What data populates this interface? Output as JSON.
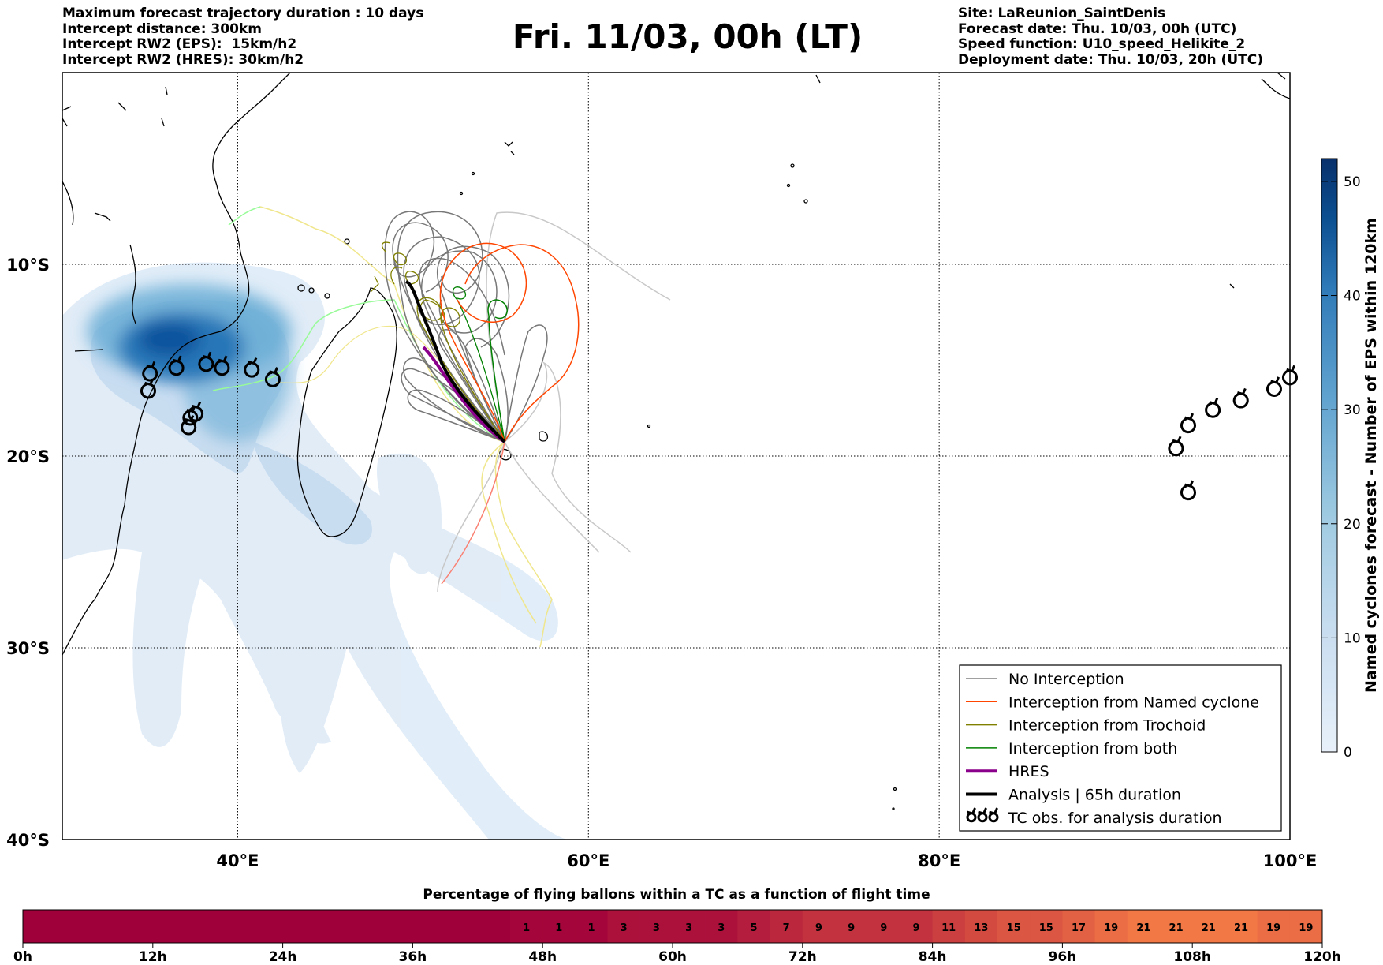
{
  "header_left": [
    "Maximum forecast trajectory duration : 10 days",
    "Intercept distance: 300km",
    "Intercept RW2 (EPS):  15km/h2",
    "Intercept RW2 (HRES): 30km/h2"
  ],
  "header_right": [
    "Site: LaReunion_SaintDenis",
    "Forecast date: Thu. 10/03, 00h (UTC)",
    "Speed function: U10_speed_Helikite_2",
    "Deployment date: Thu. 10/03, 20h (UTC)"
  ],
  "title": "Fri. 11/03, 00h (LT)",
  "map": {
    "lon_range": [
      30,
      100
    ],
    "lat_range": [
      -40,
      0
    ],
    "lon_ticks": [
      {
        "v": 40,
        "label": "40°E"
      },
      {
        "v": 60,
        "label": "60°E"
      },
      {
        "v": 80,
        "label": "80°E"
      },
      {
        "v": 100,
        "label": "100°E"
      }
    ],
    "lat_ticks": [
      {
        "v": -10,
        "label": "10°S"
      },
      {
        "v": -20,
        "label": "20°S"
      },
      {
        "v": -30,
        "label": "30°S"
      },
      {
        "v": -40,
        "label": "40°S"
      }
    ],
    "grid": "dotted"
  },
  "colorbar": {
    "label": "Named cyclones forecast - Number of EPS within 120km",
    "ticks": [
      0,
      10,
      20,
      30,
      40,
      50
    ],
    "max": 52,
    "colors": [
      "#e8f1fa",
      "#c9ddf0",
      "#9ecae1",
      "#5fa2cf",
      "#2f7ab8",
      "#0b4f91",
      "#08306b"
    ]
  },
  "legend": [
    {
      "label": "No Interception",
      "color": "#808080",
      "width": 1.5,
      "kind": "line"
    },
    {
      "label": "Interception from Named cyclone",
      "color": "#ff4500",
      "width": 1.5,
      "kind": "line"
    },
    {
      "label": "Interception from Trochoid",
      "color": "#808000",
      "width": 1.5,
      "kind": "line"
    },
    {
      "label": "Interception from both",
      "color": "#008000",
      "width": 1.5,
      "kind": "line"
    },
    {
      "label": "HRES",
      "color": "#8b008b",
      "width": 4,
      "kind": "line"
    },
    {
      "label": "Analysis | 65h duration",
      "color": "#000000",
      "width": 4,
      "kind": "line"
    },
    {
      "label": "TC obs. for analysis duration",
      "color": "#000000",
      "width": 2,
      "kind": "tc"
    }
  ],
  "tc_obs": [
    {
      "lon": 35.0,
      "lat": -15.7
    },
    {
      "lon": 36.5,
      "lat": -15.4
    },
    {
      "lon": 38.2,
      "lat": -15.2
    },
    {
      "lon": 39.1,
      "lat": -15.4
    },
    {
      "lon": 40.8,
      "lat": -15.5
    },
    {
      "lon": 42.0,
      "lat": -16.0
    },
    {
      "lon": 34.9,
      "lat": -16.6
    },
    {
      "lon": 37.6,
      "lat": -17.8
    },
    {
      "lon": 37.3,
      "lat": -18.0
    },
    {
      "lon": 37.2,
      "lat": -18.5
    },
    {
      "lon": 93.5,
      "lat": -19.6
    },
    {
      "lon": 94.2,
      "lat": -18.4
    },
    {
      "lon": 95.6,
      "lat": -17.6
    },
    {
      "lon": 97.2,
      "lat": -17.1
    },
    {
      "lon": 99.1,
      "lat": -16.5
    },
    {
      "lon": 100.0,
      "lat": -15.9
    },
    {
      "lon": 94.2,
      "lat": -21.9
    }
  ],
  "bottom_bar": {
    "title": "Percentage of flying ballons within a TC as a function of flight time",
    "hour_labels": [
      "0h",
      "12h",
      "24h",
      "36h",
      "48h",
      "60h",
      "72h",
      "84h",
      "96h",
      "108h",
      "120h"
    ],
    "n_cells": 40,
    "values": [
      null,
      null,
      null,
      null,
      null,
      null,
      null,
      null,
      null,
      null,
      null,
      null,
      null,
      null,
      null,
      1,
      1,
      1,
      3,
      3,
      3,
      3,
      5,
      7,
      9,
      9,
      9,
      9,
      11,
      13,
      15,
      15,
      17,
      19,
      21,
      21,
      21,
      21,
      19,
      19
    ]
  }
}
